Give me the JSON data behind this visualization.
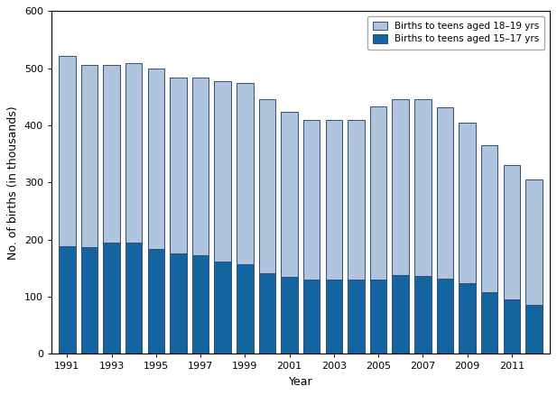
{
  "years": [
    1991,
    1992,
    1993,
    1994,
    1995,
    1996,
    1997,
    1998,
    1999,
    2000,
    2001,
    2002,
    2003,
    2004,
    2005,
    2006,
    2007,
    2008,
    2009,
    2010,
    2011,
    2012
  ],
  "births_15_17": [
    188,
    187,
    195,
    194,
    183,
    176,
    172,
    161,
    156,
    141,
    135,
    130,
    129,
    129,
    130,
    138,
    136,
    132,
    124,
    107,
    95,
    86
  ],
  "births_18_19": [
    333,
    318,
    311,
    315,
    317,
    308,
    311,
    316,
    318,
    304,
    288,
    280,
    281,
    281,
    303,
    307,
    309,
    299,
    281,
    258,
    236,
    219
  ],
  "color_15_17": "#1464a0",
  "color_18_19": "#b0c4de",
  "bar_edge_color": "#2c4f7a",
  "ylabel": "No. of births (in thousands)",
  "xlabel": "Year",
  "ylim": [
    0,
    600
  ],
  "yticks": [
    0,
    100,
    200,
    300,
    400,
    500,
    600
  ],
  "xtick_years": [
    1991,
    1993,
    1995,
    1997,
    1999,
    2001,
    2003,
    2005,
    2007,
    2009,
    2011
  ],
  "legend_label_18_19": "Births to teens aged 18–19 yrs",
  "legend_label_15_17": "Births to teens aged 15–17 yrs",
  "bar_width": 0.75,
  "figsize": [
    6.17,
    4.38
  ],
  "dpi": 100
}
